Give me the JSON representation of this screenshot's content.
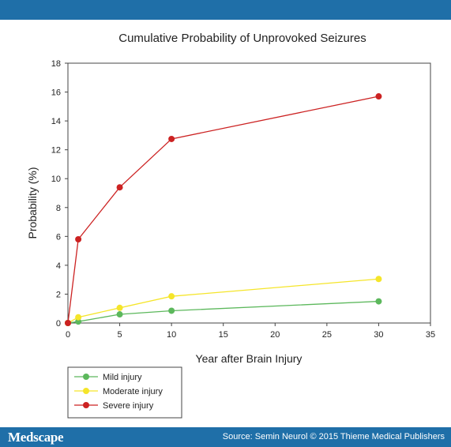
{
  "header": {},
  "footer": {
    "logo": "Medscape",
    "source": "Source: Semin Neurol © 2015 Thieme Medical Publishers"
  },
  "chart_data": {
    "type": "line",
    "title": "Cumulative Probability of Unprovoked Seizures",
    "xlabel": "Year after Brain Injury",
    "ylabel": "Probability (%)",
    "xlim": [
      0,
      35
    ],
    "ylim": [
      0,
      18
    ],
    "x_ticks": [
      0,
      5,
      10,
      15,
      20,
      25,
      30,
      35
    ],
    "y_ticks": [
      0,
      2,
      4,
      6,
      8,
      10,
      12,
      14,
      16,
      18
    ],
    "grid": false,
    "legend_position": "bottom-left",
    "series": [
      {
        "name": "Mild injury",
        "color": "#5cb85c",
        "points": [
          [
            0,
            0
          ],
          [
            1,
            0.1
          ],
          [
            5,
            0.6
          ],
          [
            10,
            0.85
          ],
          [
            30,
            1.5
          ]
        ]
      },
      {
        "name": "Moderate injury",
        "color": "#f5e52a",
        "points": [
          [
            0,
            0
          ],
          [
            1,
            0.4
          ],
          [
            5,
            1.05
          ],
          [
            10,
            1.85
          ],
          [
            30,
            3.05
          ]
        ]
      },
      {
        "name": "Severe injury",
        "color": "#cc2222",
        "points": [
          [
            0,
            0
          ],
          [
            1,
            5.8
          ],
          [
            5,
            9.4
          ],
          [
            10,
            12.75
          ],
          [
            30,
            15.7
          ]
        ]
      }
    ]
  }
}
